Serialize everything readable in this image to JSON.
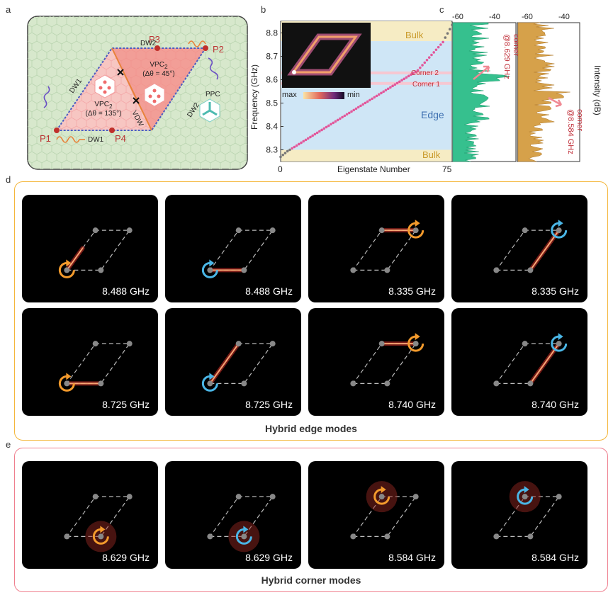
{
  "panel_labels": {
    "a": "a",
    "b": "b",
    "c": "c",
    "d": "d",
    "e": "e"
  },
  "panel_a": {
    "dw1": "DW1",
    "dw2": "DW2",
    "dw2b": "DW2",
    "dw1b": "DW1",
    "vdw": "VDW",
    "ppc": "PPC",
    "p1": "P1",
    "p2": "P2",
    "p3": "P3",
    "p4": "P4",
    "vpc1_name": "VPC",
    "vpc1_sub": "2",
    "vpc1_angle": "(Δθ = 135°)",
    "vpc2_name": "VPC",
    "vpc2_sub": "2",
    "vpc2_angle": "(Δθ = 45°)"
  },
  "panel_b": {
    "ylabel": "Frequency (GHz)",
    "xlabel": "Eigenstate Number",
    "x_ticks": [
      "0",
      "75"
    ],
    "y_ticks": [
      "8.3",
      "8.4",
      "8.5",
      "8.6",
      "8.7",
      "8.8"
    ],
    "region_labels": {
      "bulk_top": "Bulk",
      "bulk_bottom": "Bulk",
      "edge": "Edge",
      "corner2": "Corner 2",
      "corner1": "Corner 1"
    },
    "colorbar": {
      "max": "max",
      "min": "min"
    }
  },
  "panel_c": {
    "ticks_left": [
      "-60",
      "-40"
    ],
    "ticks_right": [
      "-60",
      "-40"
    ],
    "ylabel": "Intensity (dB)",
    "note1_a": "corner",
    "note1_b": "@8.629 GHz",
    "note2_a": "corner",
    "note2_b": "@8.584 GHz"
  },
  "chart_data": {
    "type": "scatter",
    "xlabel": "Eigenstate Number",
    "ylabel": "Frequency (GHz)",
    "xlim": [
      0,
      75
    ],
    "ylim": [
      8.25,
      8.85
    ],
    "bands": [
      {
        "name": "Bulk",
        "range": [
          8.765,
          8.85
        ]
      },
      {
        "name": "Bulk",
        "range": [
          8.25,
          8.3
        ]
      },
      {
        "name": "Edge",
        "range": [
          8.3,
          8.765
        ]
      },
      {
        "name": "Corner 2",
        "range": [
          8.623,
          8.635
        ]
      },
      {
        "name": "Corner 1",
        "range": [
          8.578,
          8.59
        ]
      }
    ]
  },
  "edge_modes": {
    "caption": "Hybrid edge modes",
    "panels": [
      {
        "freq": "8.488 GHz",
        "kind": "lower-left",
        "dir": "orange"
      },
      {
        "freq": "8.488 GHz",
        "kind": "bottom",
        "dir": "blue"
      },
      {
        "freq": "8.335 GHz",
        "kind": "top",
        "dir": "orange"
      },
      {
        "freq": "8.335 GHz",
        "kind": "right",
        "dir": "blue"
      },
      {
        "freq": "8.725 GHz",
        "kind": "bottom",
        "dir": "orange"
      },
      {
        "freq": "8.725 GHz",
        "kind": "left",
        "dir": "blue"
      },
      {
        "freq": "8.740 GHz",
        "kind": "top",
        "dir": "orange"
      },
      {
        "freq": "8.740 GHz",
        "kind": "right",
        "dir": "blue"
      }
    ]
  },
  "corner_modes": {
    "caption": "Hybrid corner modes",
    "panels": [
      {
        "freq": "8.629 GHz",
        "kind": "corner-br",
        "dir": "orange"
      },
      {
        "freq": "8.629 GHz",
        "kind": "corner-br",
        "dir": "blue"
      },
      {
        "freq": "8.584 GHz",
        "kind": "corner-tl",
        "dir": "orange"
      },
      {
        "freq": "8.584 GHz",
        "kind": "corner-tl",
        "dir": "blue"
      }
    ]
  }
}
